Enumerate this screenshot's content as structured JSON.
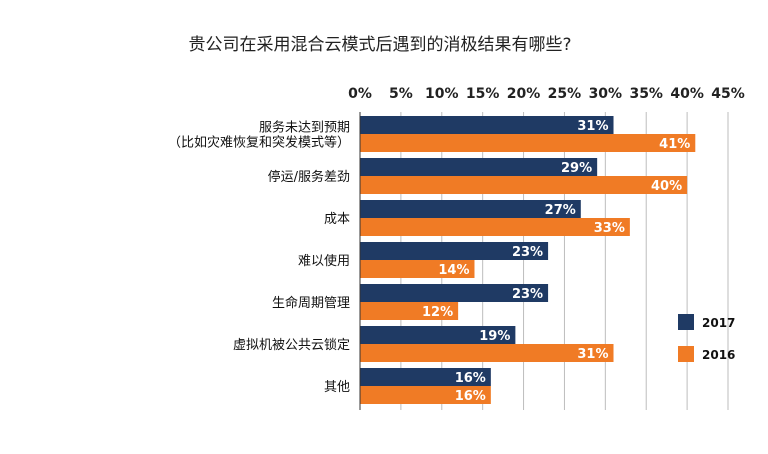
{
  "chart_data": {
    "type": "bar",
    "orientation": "horizontal",
    "title": "贵公司在采用混合云模式后遇到的消极结果有哪些?",
    "xlim": [
      0,
      45
    ],
    "x_ticks": [
      "0%",
      "5%",
      "10%",
      "15%",
      "20%",
      "25%",
      "30%",
      "35%",
      "40%",
      "45%"
    ],
    "categories": [
      [
        "服务未达到预期",
        "（比如灾难恢复和突发模式等）"
      ],
      [
        "停运/服务差劲"
      ],
      [
        "成本"
      ],
      [
        "难以使用"
      ],
      [
        "生命周期管理"
      ],
      [
        "虚拟机被公共云锁定"
      ],
      [
        "其他"
      ]
    ],
    "series": [
      {
        "name": "2017",
        "color": "#1f3a64",
        "values": [
          31,
          29,
          27,
          23,
          23,
          19,
          16
        ],
        "labels": [
          "31%",
          "29%",
          "27%",
          "23%",
          "23%",
          "19%",
          "16%"
        ]
      },
      {
        "name": "2016",
        "color": "#f07b25",
        "values": [
          41,
          40,
          33,
          14,
          12,
          31,
          16
        ],
        "labels": [
          "41%",
          "40%",
          "33%",
          "14%",
          "12%",
          "31%",
          "16%"
        ]
      }
    ],
    "grid": true,
    "legend_position": "bottom-right"
  }
}
